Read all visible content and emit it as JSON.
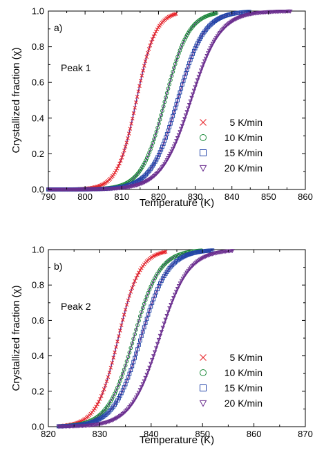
{
  "chart_data": [
    {
      "type": "scatter",
      "panel_label": "a)",
      "annotation": "Peak 1",
      "xlabel": "Temperature (K)",
      "ylabel": "Crystallized fraction (χ)",
      "xlim": [
        790,
        860
      ],
      "ylim": [
        0.0,
        1.0
      ],
      "xticks": [
        "790",
        "800",
        "810",
        "820",
        "830",
        "840",
        "850",
        "860"
      ],
      "yticks": [
        "0.0",
        "0.2",
        "0.4",
        "0.6",
        "0.8",
        "1.0"
      ],
      "legend_position": "center-right",
      "series": [
        {
          "name": "5 K/min",
          "marker": "x",
          "color": "#e8262b",
          "x_range": [
            795,
            825
          ],
          "midpoint": 814.0,
          "width": 2.6
        },
        {
          "name": "10 K/min",
          "marker": "circle",
          "color": "#1b8a3a",
          "x_range": [
            790,
            836
          ],
          "midpoint": 821.8,
          "width": 3.2
        },
        {
          "name": "15 K/min",
          "marker": "square",
          "color": "#2244a8",
          "x_range": [
            790,
            845
          ],
          "midpoint": 825.2,
          "width": 3.6
        },
        {
          "name": "20 K/min",
          "marker": "triangle-down",
          "color": "#6b2e8f",
          "x_range": [
            790,
            856
          ],
          "midpoint": 828.8,
          "width": 4.0
        }
      ]
    },
    {
      "type": "scatter",
      "panel_label": "b)",
      "annotation": "Peak 2",
      "xlabel": "Temperature (K)",
      "ylabel": "Crystallized fraction (χ)",
      "xlim": [
        820,
        870
      ],
      "ylim": [
        0.0,
        1.0
      ],
      "xticks": [
        "820",
        "830",
        "840",
        "850",
        "860",
        "870"
      ],
      "yticks": [
        "0.0",
        "0.2",
        "0.4",
        "0.6",
        "0.8",
        "1.0"
      ],
      "legend_position": "lower-right",
      "series": [
        {
          "name": "5 K/min",
          "marker": "x",
          "color": "#e8262b",
          "x_range": [
            822,
            843
          ],
          "midpoint": 833.6,
          "width": 2.1
        },
        {
          "name": "10 K/min",
          "marker": "circle",
          "color": "#1b8a3a",
          "x_range": [
            822,
            850
          ],
          "midpoint": 836.6,
          "width": 2.5
        },
        {
          "name": "15 K/min",
          "marker": "square",
          "color": "#2244a8",
          "x_range": [
            822,
            852
          ],
          "midpoint": 838.0,
          "width": 2.6
        },
        {
          "name": "20 K/min",
          "marker": "triangle-down",
          "color": "#6b2e8f",
          "x_range": [
            822,
            856
          ],
          "midpoint": 841.6,
          "width": 2.8
        }
      ]
    }
  ]
}
